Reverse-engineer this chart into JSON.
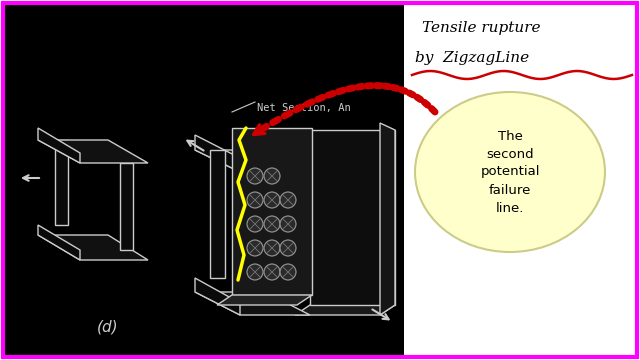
{
  "bg_color": "#000000",
  "outer_bg": "#ffffff",
  "border_color": "#ff00ff",
  "title_line1": "Tensile rupture",
  "title_line2": "by  ZigzagLine",
  "label_net_section": "Net Section, An",
  "label_d": "(d)",
  "bubble_text": "The\nsecond\npotential\nfailure\nline.",
  "bubble_color": "#ffffcc",
  "bubble_edge": "#cccc88",
  "text_color": "#000000",
  "yellow_color": "#ffff00",
  "white_line": "#cccccc",
  "red_color": "#cc0000"
}
